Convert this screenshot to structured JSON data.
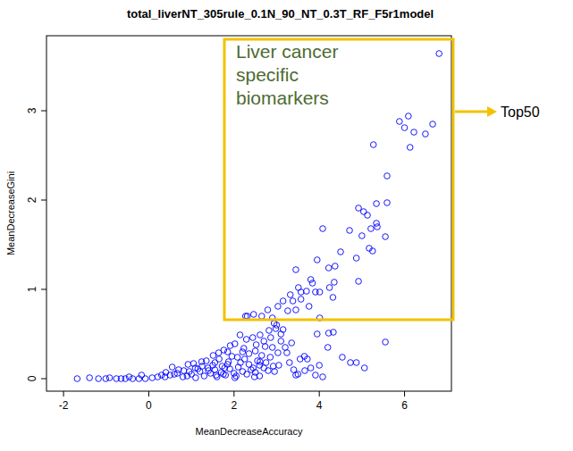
{
  "chart_data": {
    "type": "scatter",
    "title": "total_liverNT_305rule_0.1N_90_NT_0.3T_RF_F5r1model",
    "x_label": "MeanDecreaseAccuracy",
    "y_label": "MeanDecreaseGini",
    "color": "blue",
    "marker": "circle",
    "xlim": [
      -2.4,
      7.1
    ],
    "ylim": [
      -0.14,
      3.84
    ],
    "xticks": [
      -2,
      0,
      2,
      4,
      6
    ],
    "yticks": [
      0,
      1,
      2,
      3
    ],
    "annotations": [
      {
        "text": "Liver cancer\nspecific\nbiomarkers"
      },
      {
        "text": "Top50"
      }
    ],
    "x": [
      6.81,
      5.88,
      6.09,
      6.0,
      6.22,
      6.49,
      6.66,
      6.13,
      5.27,
      5.59,
      5.34,
      5.59,
      4.92,
      5.04,
      5.13,
      4.71,
      4.08,
      5.21,
      5.34,
      5.36,
      5.0,
      5.55,
      5.17,
      5.25,
      4.87,
      4.5,
      4.37,
      3.95,
      4.22,
      3.8,
      3.84,
      3.45,
      3.57,
      4.35,
      4.24,
      4.32,
      4.92,
      3.91,
      3.7,
      3.51,
      3.57,
      3.32,
      3.38,
      3.15,
      3.03,
      3.45,
      3.26,
      2.79,
      2.46,
      2.31,
      2.65,
      2.9,
      4.01,
      2.27,
      3.76,
      4.01,
      5.55,
      4.33,
      4.22,
      4.73,
      4.87,
      5.06,
      4.54,
      2.94,
      2.98,
      2.82,
      2.86,
      2.61,
      2.44,
      2.29,
      2.14,
      2.02,
      1.91,
      1.76,
      1.64,
      1.51,
      2.23,
      2.5,
      2.73,
      3.03,
      3.24,
      3.55,
      3.72,
      3.66,
      3.91,
      3.45,
      4.08,
      2.92,
      2.61,
      2.35,
      2.08,
      1.87,
      1.72,
      1.55,
      1.39,
      1.24,
      1.09,
      0.92,
      0.82,
      0.67,
      0.5,
      0.38,
      0.21,
      0.08,
      -0.08,
      -0.23,
      -0.38,
      -0.55,
      -0.76,
      -1.01,
      -1.18,
      -1.39,
      -1.68,
      -0.92,
      -0.65,
      -0.46,
      -0.17,
      1.0,
      1.2,
      1.3,
      1.45,
      1.55,
      1.6,
      1.7,
      1.8,
      1.9,
      2.0,
      2.1,
      2.2,
      2.3,
      2.4,
      2.5,
      2.6,
      2.7,
      2.8,
      0.9,
      0.8,
      1.1,
      1.25,
      1.35,
      1.5,
      1.65,
      1.75,
      1.85,
      1.95,
      2.05,
      2.15,
      2.25,
      2.35,
      2.45,
      2.55,
      2.65,
      2.75,
      2.85,
      2.95,
      3.05,
      3.1,
      3.2,
      3.3,
      3.4,
      3.5,
      3.65,
      3.8,
      1.4,
      1.15,
      0.95,
      0.7,
      0.6,
      0.55,
      0.4,
      0.3,
      1.05,
      1.58,
      1.78,
      2.02,
      2.48,
      2.9,
      2.7,
      2.52,
      3.15,
      3.35,
      4.0,
      4.2,
      3.95,
      2.2,
      1.85,
      2.6,
      3.0,
      3.1
    ],
    "values": [
      3.64,
      2.88,
      2.94,
      2.81,
      2.76,
      2.74,
      2.85,
      2.59,
      2.62,
      2.27,
      1.96,
      1.97,
      1.91,
      1.87,
      1.83,
      1.66,
      1.68,
      1.68,
      1.74,
      1.7,
      1.6,
      1.59,
      1.46,
      1.43,
      1.35,
      1.42,
      1.26,
      1.33,
      1.24,
      1.11,
      1.07,
      1.22,
      0.97,
      1.08,
      1.02,
      0.91,
      1.09,
      0.97,
      0.98,
      1.02,
      0.89,
      0.94,
      0.87,
      0.87,
      0.81,
      0.77,
      0.76,
      0.77,
      0.72,
      0.7,
      0.7,
      0.68,
      0.68,
      0.7,
      0.81,
      0.97,
      0.41,
      0.52,
      0.51,
      0.18,
      0.18,
      0.12,
      0.24,
      0.62,
      0.56,
      0.54,
      0.46,
      0.49,
      0.46,
      0.44,
      0.49,
      0.39,
      0.37,
      0.32,
      0.29,
      0.26,
      0.34,
      0.31,
      0.36,
      0.29,
      0.29,
      0.22,
      0.22,
      0.09,
      0.04,
      0.04,
      0.02,
      0.14,
      0.19,
      0.16,
      0.24,
      0.19,
      0.14,
      0.18,
      0.12,
      0.19,
      0.12,
      0.16,
      0.09,
      0.06,
      0.04,
      0.02,
      0.02,
      0.01,
      0,
      0,
      0,
      0,
      0,
      0,
      0,
      0.01,
      0,
      0.01,
      0,
      0.02,
      0.04,
      0.05,
      0.08,
      0.03,
      0.06,
      0.1,
      0.02,
      0.07,
      0.04,
      0.11,
      0.06,
      0.13,
      0.08,
      0.05,
      0.1,
      0.07,
      0.03,
      0.12,
      0.09,
      0.03,
      0.02,
      0.01,
      0.14,
      0.2,
      0.15,
      0.22,
      0.05,
      0.16,
      0.25,
      0.03,
      0.18,
      0.22,
      0.28,
      0.12,
      0.2,
      0.26,
      0.18,
      0.24,
      0.08,
      0.15,
      0.42,
      0.35,
      0.18,
      0.1,
      0.05,
      0.25,
      0.12,
      0.09,
      0.11,
      0.08,
      0.1,
      0.05,
      0.13,
      0.07,
      0.04,
      0.17,
      0.04,
      0.12,
      0.01,
      0.02,
      0.35,
      0.42,
      0.38,
      0.55,
      0.4,
      0.15,
      0.35,
      0.5,
      0.3,
      0.3,
      0.15,
      0.6,
      0.5
    ]
  }
}
